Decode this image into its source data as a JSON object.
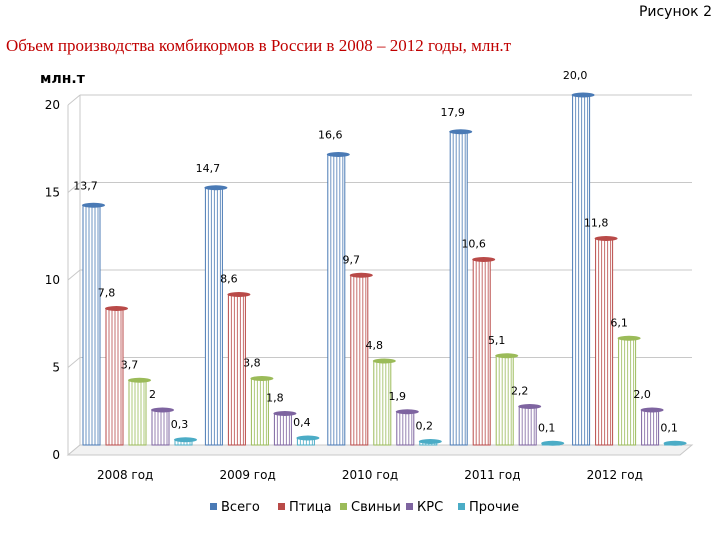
{
  "figure_label": "Рисунок 2",
  "chart_data": {
    "type": "bar",
    "title": "Объем производства комбикормов в России в 2008 – 2012 годы, млн.т",
    "ylabel": "млн.т",
    "xlabel": "",
    "ylim": [
      0,
      20
    ],
    "yticks": [
      "0",
      "5",
      "10",
      "15",
      "20"
    ],
    "grid": true,
    "legend_position": "bottom",
    "categories": [
      "2008 год",
      "2009 год",
      "2010 год",
      "2011 год",
      "2012 год"
    ],
    "series": [
      {
        "name": "Всего",
        "color": "#4a7ab5",
        "values": [
          13.7,
          14.7,
          16.6,
          17.9,
          20.0
        ],
        "labels": [
          "13,7",
          "14,7",
          "16,6",
          "17,9",
          "20,0"
        ]
      },
      {
        "name": "Птица",
        "color": "#b94a48",
        "values": [
          7.8,
          8.6,
          9.7,
          10.6,
          11.8
        ],
        "labels": [
          "7,8",
          "8,6",
          "9,7",
          "10,6",
          "11,8"
        ]
      },
      {
        "name": "Свиньи",
        "color": "#9bbb59",
        "values": [
          3.7,
          3.8,
          4.8,
          5.1,
          6.1
        ],
        "labels": [
          "3,7",
          "3,8",
          "4,8",
          "5,1",
          "6,1"
        ]
      },
      {
        "name": "КРС",
        "color": "#7e64a0",
        "values": [
          2.0,
          1.8,
          1.9,
          2.2,
          2.0
        ],
        "labels": [
          "2",
          "1,8",
          "1,9",
          "2,2",
          "2,0"
        ]
      },
      {
        "name": "Прочие",
        "color": "#4bacc6",
        "values": [
          0.3,
          0.4,
          0.2,
          0.1,
          0.1
        ],
        "labels": [
          "0,3",
          "0,4",
          "0,2",
          "0,1",
          "0,1"
        ]
      }
    ]
  }
}
